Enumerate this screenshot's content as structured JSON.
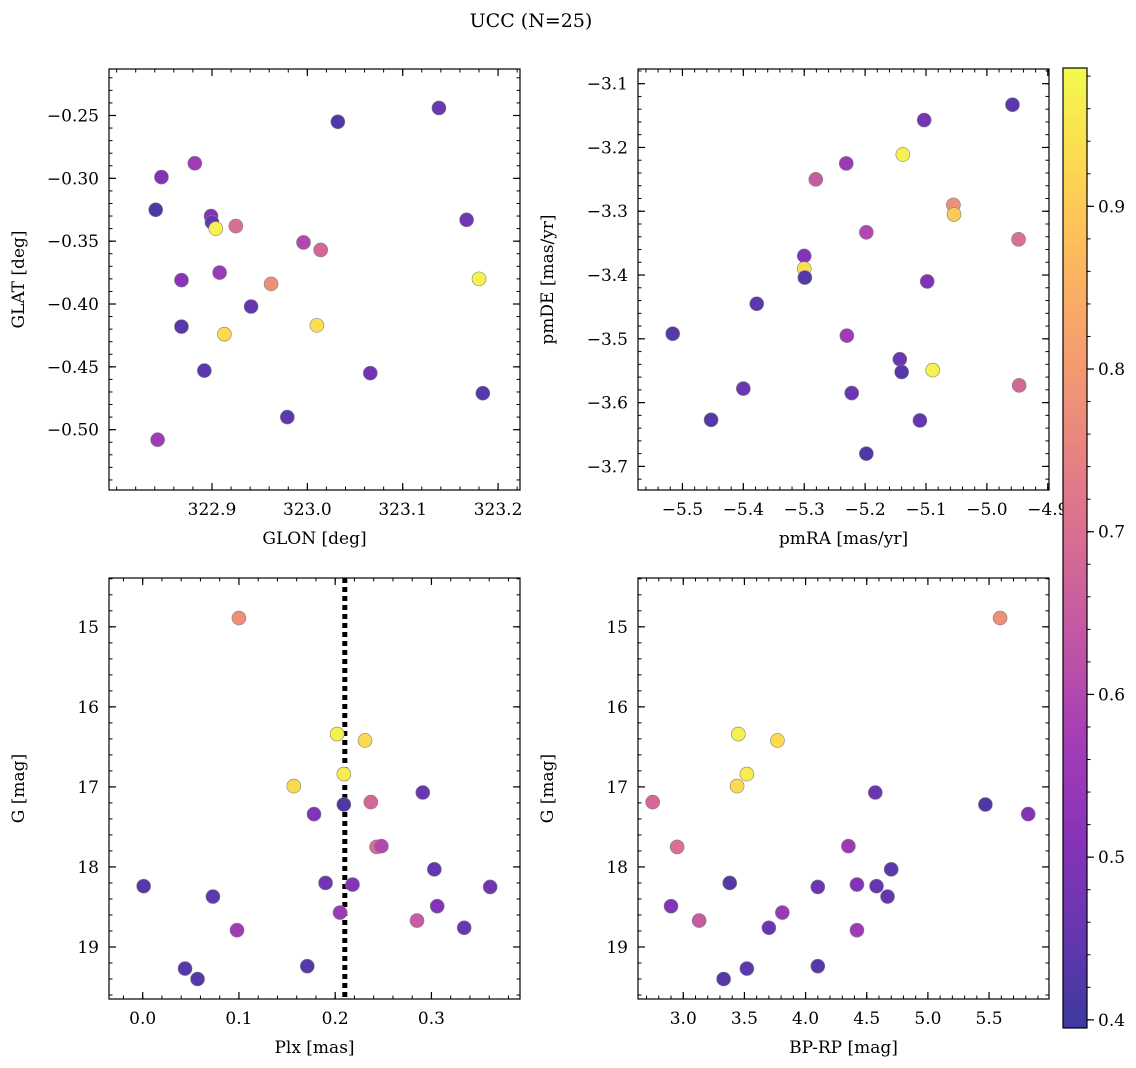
{
  "figure": {
    "suptitle": "UCC (N=25)",
    "marker_color_scale": "plasma",
    "marker_edge_color": "#808080"
  },
  "colorbar": {
    "min": 0.395,
    "max": 0.985,
    "ticks": [
      0.4,
      0.5,
      0.6,
      0.7,
      0.8,
      0.9
    ],
    "tick_labels": [
      "0.4",
      "0.5",
      "0.6",
      "0.7",
      "0.8",
      "0.9"
    ]
  },
  "chart_data": [
    {
      "type": "scatter",
      "panel": "top-left",
      "xlabel": "GLON [deg]",
      "ylabel": "GLAT [deg]",
      "xlim": [
        322.792,
        323.223
      ],
      "ylim": [
        -0.548,
        -0.213
      ],
      "y_inverted": false,
      "xticks": [
        322.9,
        323.0,
        323.1,
        323.2
      ],
      "xtick_labels": [
        "322.9",
        "323.0",
        "323.1",
        "323.2"
      ],
      "yticks": [
        -0.5,
        -0.45,
        -0.4,
        -0.35,
        -0.3,
        -0.25
      ],
      "ytick_labels": [
        "−0.50",
        "−0.45",
        "−0.40",
        "−0.35",
        "−0.30",
        "−0.25"
      ],
      "points": [
        {
          "x": 322.841,
          "y": -0.325,
          "c": 0.42
        },
        {
          "x": 322.847,
          "y": -0.299,
          "c": 0.5
        },
        {
          "x": 322.843,
          "y": -0.508,
          "c": 0.56
        },
        {
          "x": 322.868,
          "y": -0.381,
          "c": 0.52
        },
        {
          "x": 322.868,
          "y": -0.418,
          "c": 0.43
        },
        {
          "x": 322.882,
          "y": -0.288,
          "c": 0.56
        },
        {
          "x": 322.892,
          "y": -0.453,
          "c": 0.44
        },
        {
          "x": 322.899,
          "y": -0.33,
          "c": 0.5
        },
        {
          "x": 322.9,
          "y": -0.335,
          "c": 0.45
        },
        {
          "x": 322.904,
          "y": -0.34,
          "c": 0.97
        },
        {
          "x": 322.908,
          "y": -0.375,
          "c": 0.55
        },
        {
          "x": 322.913,
          "y": -0.424,
          "c": 0.93
        },
        {
          "x": 322.925,
          "y": -0.338,
          "c": 0.7
        },
        {
          "x": 322.941,
          "y": -0.402,
          "c": 0.45
        },
        {
          "x": 322.962,
          "y": -0.384,
          "c": 0.78
        },
        {
          "x": 322.979,
          "y": -0.49,
          "c": 0.44
        },
        {
          "x": 322.996,
          "y": -0.351,
          "c": 0.6
        },
        {
          "x": 323.01,
          "y": -0.417,
          "c": 0.94
        },
        {
          "x": 323.014,
          "y": -0.357,
          "c": 0.68
        },
        {
          "x": 323.032,
          "y": -0.255,
          "c": 0.42
        },
        {
          "x": 323.066,
          "y": -0.455,
          "c": 0.47
        },
        {
          "x": 323.138,
          "y": -0.244,
          "c": 0.46
        },
        {
          "x": 323.167,
          "y": -0.333,
          "c": 0.47
        },
        {
          "x": 323.18,
          "y": -0.38,
          "c": 0.97
        },
        {
          "x": 323.184,
          "y": -0.471,
          "c": 0.43
        }
      ]
    },
    {
      "type": "scatter",
      "panel": "top-right",
      "xlabel": "pmRA [mas/yr]",
      "ylabel": "pmDE [mas/yr]",
      "xlim": [
        -5.573,
        -4.898
      ],
      "ylim": [
        -3.737,
        -3.077
      ],
      "y_inverted": false,
      "xticks": [
        -5.5,
        -5.4,
        -5.3,
        -5.2,
        -5.1,
        -5.0,
        -4.9
      ],
      "xtick_labels": [
        "−5.5",
        "−5.4",
        "−5.3",
        "−5.2",
        "−5.1",
        "−5.0",
        "−4.9"
      ],
      "yticks": [
        -3.7,
        -3.6,
        -3.5,
        -3.4,
        -3.3,
        -3.2,
        -3.1
      ],
      "ytick_labels": [
        "−3.7",
        "−3.6",
        "−3.5",
        "−3.4",
        "−3.3",
        "−3.2",
        "−3.1"
      ],
      "points": [
        {
          "x": -5.516,
          "y": -3.492,
          "c": 0.43
        },
        {
          "x": -5.453,
          "y": -3.627,
          "c": 0.43
        },
        {
          "x": -5.4,
          "y": -3.578,
          "c": 0.46
        },
        {
          "x": -5.378,
          "y": -3.445,
          "c": 0.44
        },
        {
          "x": -5.3,
          "y": -3.37,
          "c": 0.5
        },
        {
          "x": -5.3,
          "y": -3.39,
          "c": 0.94
        },
        {
          "x": -5.299,
          "y": -3.404,
          "c": 0.43
        },
        {
          "x": -5.281,
          "y": -3.25,
          "c": 0.65
        },
        {
          "x": -5.231,
          "y": -3.225,
          "c": 0.55
        },
        {
          "x": -5.23,
          "y": -3.495,
          "c": 0.56
        },
        {
          "x": -5.222,
          "y": -3.585,
          "c": 0.46
        },
        {
          "x": -5.198,
          "y": -3.333,
          "c": 0.6
        },
        {
          "x": -5.198,
          "y": -3.68,
          "c": 0.42
        },
        {
          "x": -5.143,
          "y": -3.532,
          "c": 0.46
        },
        {
          "x": -5.14,
          "y": -3.552,
          "c": 0.43
        },
        {
          "x": -5.138,
          "y": -3.211,
          "c": 0.97
        },
        {
          "x": -5.11,
          "y": -3.628,
          "c": 0.45
        },
        {
          "x": -5.103,
          "y": -3.157,
          "c": 0.48
        },
        {
          "x": -5.098,
          "y": -3.41,
          "c": 0.5
        },
        {
          "x": -5.089,
          "y": -3.549,
          "c": 0.97
        },
        {
          "x": -5.055,
          "y": -3.29,
          "c": 0.78
        },
        {
          "x": -5.054,
          "y": -3.305,
          "c": 0.9
        },
        {
          "x": -4.958,
          "y": -3.133,
          "c": 0.44
        },
        {
          "x": -4.948,
          "y": -3.344,
          "c": 0.7
        },
        {
          "x": -4.947,
          "y": -3.573,
          "c": 0.68
        }
      ]
    },
    {
      "type": "scatter",
      "panel": "bottom-left",
      "xlabel": "Plx [mas]",
      "ylabel": "G [mag]",
      "xlim": [
        -0.035,
        0.392
      ],
      "ylim": [
        19.65,
        14.39
      ],
      "y_inverted": true,
      "vline": {
        "x": 0.21,
        "style": "dotted",
        "color": "#000000"
      },
      "xticks": [
        0.0,
        0.1,
        0.2,
        0.3
      ],
      "xtick_labels": [
        "0.0",
        "0.1",
        "0.2",
        "0.3"
      ],
      "yticks": [
        15,
        16,
        17,
        18,
        19
      ],
      "ytick_labels": [
        "15",
        "16",
        "17",
        "18",
        "19"
      ],
      "points": [
        {
          "x": 0.001,
          "y": 18.24,
          "c": 0.43
        },
        {
          "x": 0.044,
          "y": 19.27,
          "c": 0.43
        },
        {
          "x": 0.057,
          "y": 19.4,
          "c": 0.43
        },
        {
          "x": 0.073,
          "y": 18.37,
          "c": 0.44
        },
        {
          "x": 0.098,
          "y": 18.79,
          "c": 0.56
        },
        {
          "x": 0.1,
          "y": 14.89,
          "c": 0.78
        },
        {
          "x": 0.157,
          "y": 16.99,
          "c": 0.93
        },
        {
          "x": 0.171,
          "y": 19.24,
          "c": 0.43
        },
        {
          "x": 0.178,
          "y": 17.34,
          "c": 0.5
        },
        {
          "x": 0.19,
          "y": 18.2,
          "c": 0.47
        },
        {
          "x": 0.202,
          "y": 16.34,
          "c": 0.97
        },
        {
          "x": 0.205,
          "y": 18.57,
          "c": 0.55
        },
        {
          "x": 0.209,
          "y": 16.84,
          "c": 0.96
        },
        {
          "x": 0.209,
          "y": 17.22,
          "c": 0.42
        },
        {
          "x": 0.218,
          "y": 18.22,
          "c": 0.5
        },
        {
          "x": 0.231,
          "y": 16.42,
          "c": 0.93
        },
        {
          "x": 0.237,
          "y": 17.19,
          "c": 0.68
        },
        {
          "x": 0.243,
          "y": 17.75,
          "c": 0.7
        },
        {
          "x": 0.248,
          "y": 17.74,
          "c": 0.6
        },
        {
          "x": 0.285,
          "y": 18.67,
          "c": 0.65
        },
        {
          "x": 0.291,
          "y": 17.07,
          "c": 0.46
        },
        {
          "x": 0.303,
          "y": 18.03,
          "c": 0.45
        },
        {
          "x": 0.306,
          "y": 18.49,
          "c": 0.5
        },
        {
          "x": 0.334,
          "y": 18.76,
          "c": 0.46
        },
        {
          "x": 0.361,
          "y": 18.25,
          "c": 0.47
        }
      ]
    },
    {
      "type": "scatter",
      "panel": "bottom-right",
      "xlabel": "BP-RP [mag]",
      "ylabel": "G [mag]",
      "xlim": [
        2.63,
        5.99
      ],
      "ylim": [
        19.65,
        14.39
      ],
      "y_inverted": true,
      "xticks": [
        3.0,
        3.5,
        4.0,
        4.5,
        5.0,
        5.5
      ],
      "xtick_labels": [
        "3.0",
        "3.5",
        "4.0",
        "4.5",
        "5.0",
        "5.5"
      ],
      "yticks": [
        15,
        16,
        17,
        18,
        19
      ],
      "ytick_labels": [
        "15",
        "16",
        "17",
        "18",
        "19"
      ],
      "points": [
        {
          "x": 2.75,
          "y": 17.19,
          "c": 0.68
        },
        {
          "x": 2.9,
          "y": 18.49,
          "c": 0.5
        },
        {
          "x": 2.95,
          "y": 17.75,
          "c": 0.7
        },
        {
          "x": 3.13,
          "y": 18.67,
          "c": 0.65
        },
        {
          "x": 3.33,
          "y": 19.4,
          "c": 0.43
        },
        {
          "x": 3.38,
          "y": 18.2,
          "c": 0.43
        },
        {
          "x": 3.44,
          "y": 16.99,
          "c": 0.93
        },
        {
          "x": 3.45,
          "y": 16.34,
          "c": 0.97
        },
        {
          "x": 3.52,
          "y": 19.27,
          "c": 0.44
        },
        {
          "x": 3.52,
          "y": 16.84,
          "c": 0.96
        },
        {
          "x": 3.7,
          "y": 18.76,
          "c": 0.46
        },
        {
          "x": 3.77,
          "y": 16.42,
          "c": 0.93
        },
        {
          "x": 3.81,
          "y": 18.57,
          "c": 0.55
        },
        {
          "x": 4.1,
          "y": 19.24,
          "c": 0.43
        },
        {
          "x": 4.1,
          "y": 18.25,
          "c": 0.46
        },
        {
          "x": 4.35,
          "y": 17.74,
          "c": 0.55
        },
        {
          "x": 4.42,
          "y": 18.22,
          "c": 0.5
        },
        {
          "x": 4.42,
          "y": 18.79,
          "c": 0.56
        },
        {
          "x": 4.57,
          "y": 17.07,
          "c": 0.46
        },
        {
          "x": 4.58,
          "y": 18.24,
          "c": 0.45
        },
        {
          "x": 4.67,
          "y": 18.37,
          "c": 0.45
        },
        {
          "x": 4.7,
          "y": 18.03,
          "c": 0.44
        },
        {
          "x": 5.47,
          "y": 17.22,
          "c": 0.42
        },
        {
          "x": 5.59,
          "y": 14.89,
          "c": 0.78
        },
        {
          "x": 5.82,
          "y": 17.34,
          "c": 0.5
        }
      ]
    }
  ]
}
